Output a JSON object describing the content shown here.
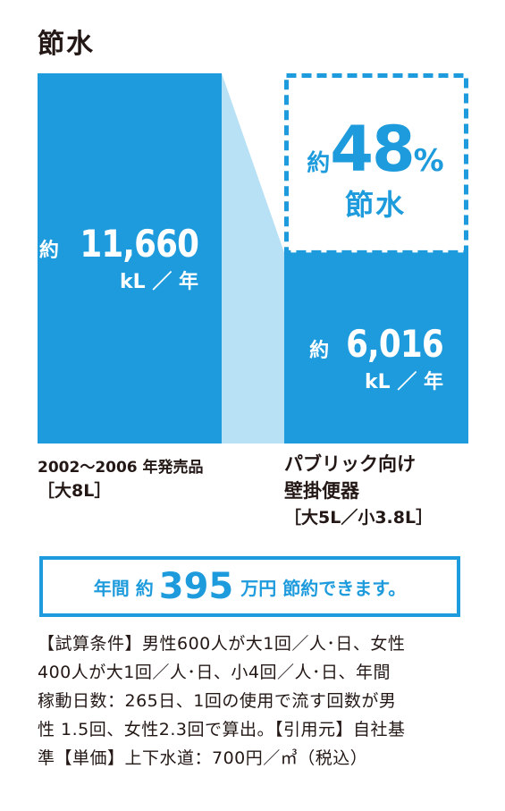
{
  "title": "節水",
  "chart_data": {
    "type": "bar",
    "unit": "kL ／ 年",
    "categories": [
      "2002～2006 年発売品［大8L］",
      "パブリック向け壁掛便器［大5L／小3.8L］"
    ],
    "values": [
      11660,
      6016
    ],
    "value_labels": [
      "11,660",
      "6,016"
    ],
    "approx_prefix": "約",
    "saving": {
      "prefix": "約",
      "value": "48",
      "percent_sign": "%",
      "label": "節水"
    }
  },
  "captions": {
    "old_line1": "2002～2006 年発売品",
    "old_line2": "［大8L］",
    "new_line1": "パブリック向け",
    "new_line2": "壁掛便器",
    "new_line3": "［大5L／小3.8L］"
  },
  "banner": {
    "prefix": "年間 約",
    "value": "395",
    "suffix": "万円 節約できます。"
  },
  "notes": [
    "【試算条件】男性600人が大1回／人･日、女性",
    "400人が大1回／人･日、小4回／人･日、年間",
    "稼動日数：265日、1回の使用で流す回数が男",
    "性 1.5回、女性2.3回で算出。【引用元】自社基",
    "準【単価】上下水道：700円／㎥（税込）"
  ],
  "colors": {
    "bar": "#1d9bdc",
    "connector": "#b9e1f6",
    "text": "#231815"
  }
}
